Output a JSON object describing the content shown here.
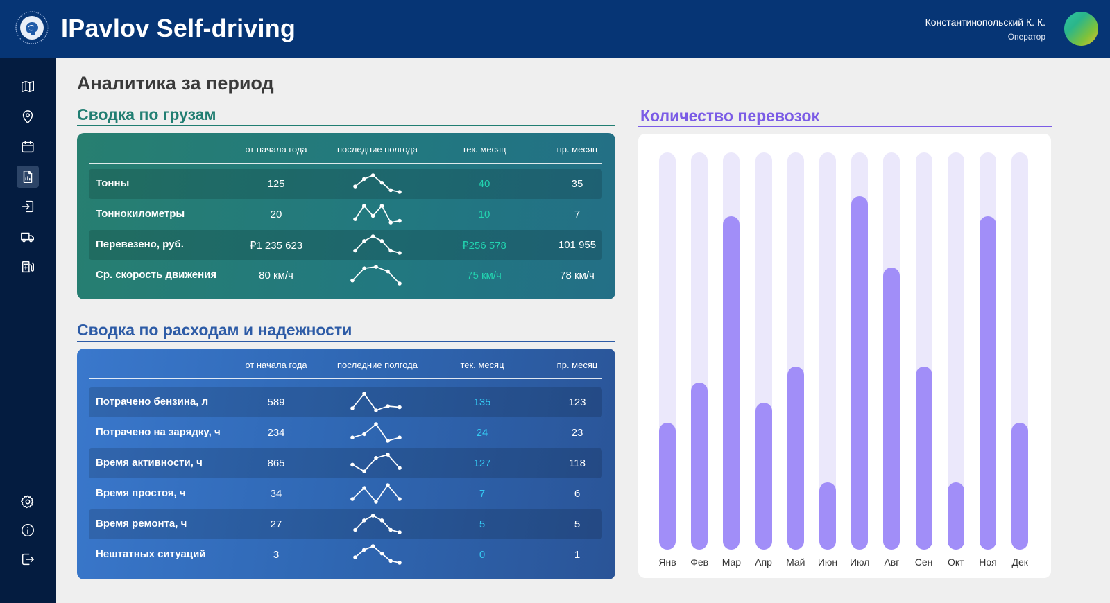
{
  "header": {
    "app_title": "IPavlov Self-driving",
    "user_name": "Константинопольский К. К.",
    "user_role": "Оператор",
    "logo_icon": "brain-logo-icon"
  },
  "sidebar": {
    "top_items": [
      {
        "icon": "map-icon",
        "active": false
      },
      {
        "icon": "location-pin-icon",
        "active": false
      },
      {
        "icon": "calendar-icon",
        "active": false
      },
      {
        "icon": "report-icon",
        "active": true
      },
      {
        "icon": "login-icon",
        "active": false
      },
      {
        "icon": "truck-icon",
        "active": false
      },
      {
        "icon": "fuel-station-icon",
        "active": false
      }
    ],
    "bottom_items": [
      {
        "icon": "gear-icon"
      },
      {
        "icon": "info-icon"
      },
      {
        "icon": "logout-icon"
      }
    ]
  },
  "page_title": "Аналитика за период",
  "cargo": {
    "title": "Сводка по грузам",
    "columns": [
      "от начала года",
      "последние полгода",
      "тек. месяц",
      "пр. месяц"
    ],
    "rows": [
      {
        "label": "Тонны",
        "ytd": "125",
        "cur": "40",
        "prev": "35",
        "trend": [
          3,
          5,
          6,
          4,
          2,
          1.5
        ]
      },
      {
        "label": "Тоннокилометры",
        "ytd": "20",
        "cur": "10",
        "prev": "7",
        "trend": [
          2,
          6,
          3,
          6,
          1,
          1.5
        ]
      },
      {
        "label": "Перевезено, руб.",
        "ytd": "₽1 235 623",
        "cur": "₽256 578",
        "prev": "101 955",
        "trend": [
          3,
          5,
          6,
          5,
          3,
          2.5
        ]
      },
      {
        "label": "Ср. скорость движения",
        "ytd": "80 км/ч",
        "cur": "75 км/ч",
        "prev": "78 км/ч",
        "trend": [
          1,
          5,
          5.5,
          4,
          0
        ]
      }
    ]
  },
  "expenses": {
    "title": "Сводка по расходам и надежности",
    "columns": [
      "от начала года",
      "последние полгода",
      "тек. месяц",
      "пр. месяц"
    ],
    "rows": [
      {
        "label": "Потрачено бензина, л",
        "ytd": "589",
        "cur": "135",
        "prev": "123",
        "trend": [
          2,
          9,
          1,
          3,
          2.5
        ]
      },
      {
        "label": "Потрачено на зарядку, ч",
        "ytd": "234",
        "cur": "24",
        "prev": "23",
        "trend": [
          2,
          3,
          6,
          1,
          2
        ]
      },
      {
        "label": "Время активности, ч",
        "ytd": "865",
        "cur": "127",
        "prev": "118",
        "trend": [
          4,
          2,
          6,
          7,
          3
        ]
      },
      {
        "label": "Время простоя, ч",
        "ytd": "34",
        "cur": "7",
        "prev": "6",
        "trend": [
          1,
          5,
          0,
          6,
          1
        ]
      },
      {
        "label": "Время ремонта, ч",
        "ytd": "27",
        "cur": "5",
        "prev": "5",
        "trend": [
          3,
          5,
          6,
          5,
          3,
          2.5
        ]
      },
      {
        "label": "Нештатных ситуаций",
        "ytd": "3",
        "cur": "0",
        "prev": "1",
        "trend": [
          3,
          5,
          6,
          4,
          2,
          1.5
        ]
      }
    ]
  },
  "chart_title": "Количество перевозок",
  "chart_data": {
    "type": "bar",
    "title": "Количество перевозок",
    "categories": [
      "Янв",
      "Фев",
      "Мар",
      "Апр",
      "Май",
      "Июн",
      "Июл",
      "Авг",
      "Сен",
      "Окт",
      "Ноя",
      "Дек"
    ],
    "values": [
      32,
      42,
      84,
      37,
      46,
      17,
      89,
      71,
      46,
      17,
      84,
      32
    ],
    "ylim": [
      0,
      100
    ],
    "grid": false,
    "xlabel": "",
    "ylabel": ""
  },
  "colors": {
    "header_bg": "#063575",
    "sidebar_bg": "#041c40",
    "cargo_title": "#217e72",
    "expenses_title": "#2d5ba6",
    "chart_title": "#7b5ce6",
    "bar_fill": "#a18ef8",
    "bar_track": "#ebe8fb"
  }
}
